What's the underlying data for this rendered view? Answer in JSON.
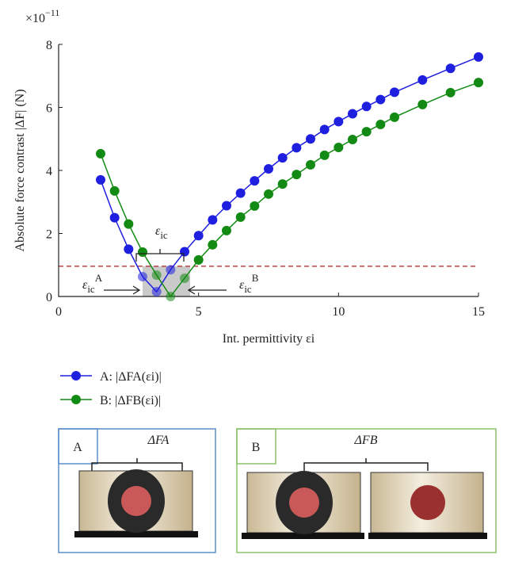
{
  "chart_data": {
    "type": "line",
    "y_label": "Absolute force contrast |ΔF| (N)",
    "x_label": "Int. permittivity εi",
    "y_offset": {
      "base": "×10",
      "exponent": "−11"
    },
    "x": [
      1.5,
      2,
      2.5,
      3,
      3.5,
      4,
      4.5,
      5,
      5.5,
      6,
      6.5,
      7,
      7.5,
      8,
      8.5,
      9,
      9.5,
      10,
      10.5,
      11,
      11.5,
      12,
      13,
      14,
      15
    ],
    "series": [
      {
        "name": "A: |ΔFA(εi)|",
        "color": "#1f1fe0",
        "values": [
          3.7,
          2.5,
          1.5,
          0.63,
          0.15,
          0.85,
          1.42,
          1.93,
          2.43,
          2.88,
          3.28,
          3.67,
          4.05,
          4.4,
          4.72,
          5.0,
          5.3,
          5.55,
          5.8,
          6.03,
          6.25,
          6.48,
          6.87,
          7.24,
          7.6
        ]
      },
      {
        "name": "B: |ΔFB(εi)|",
        "color": "#138a13",
        "values": [
          4.53,
          3.35,
          2.3,
          1.41,
          0.68,
          0.0,
          0.58,
          1.16,
          1.64,
          2.09,
          2.52,
          2.87,
          3.25,
          3.57,
          3.87,
          4.18,
          4.48,
          4.73,
          4.98,
          5.23,
          5.46,
          5.69,
          6.09,
          6.47,
          6.79
        ]
      }
    ],
    "threshold": 0.96,
    "threshold_color": "#b22222",
    "shaded_xrange": [
      3.0,
      4.7
    ],
    "annotations": [
      {
        "text": "ε",
        "sub": "ic"
      },
      {
        "text": "ε",
        "sub": "ic",
        "sup": "A"
      },
      {
        "text": "ε",
        "sub": "ic",
        "sup": "B"
      }
    ],
    "xlim": [
      0,
      15
    ],
    "xticks": [
      0,
      5,
      10,
      15
    ],
    "ylim": [
      0,
      8
    ],
    "yticks": [
      0,
      2,
      4,
      6,
      8
    ],
    "grid": false
  },
  "diagram": {
    "panels": [
      {
        "label": "A",
        "force": "ΔFA"
      },
      {
        "label": "B",
        "force": "ΔFB"
      }
    ]
  }
}
